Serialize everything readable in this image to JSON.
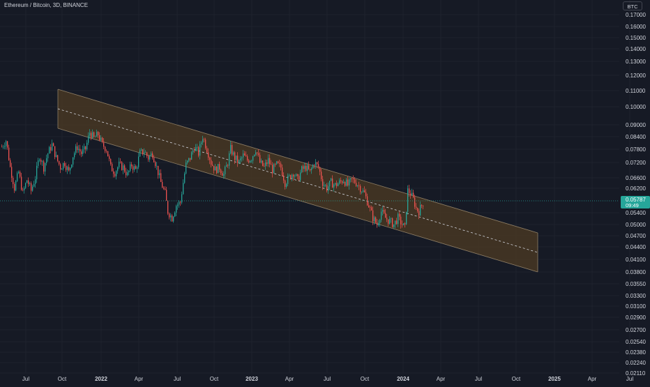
{
  "header": {
    "title": "Ethereum / Bitcoin, 3D, BINANCE",
    "currency": "BTC"
  },
  "chart_data": {
    "type": "candlestick",
    "yscale": "log",
    "ylim": [
      0.0211,
      0.17
    ],
    "y_tick_labels": [
      "0.17000",
      "0.16000",
      "0.15000",
      "0.14000",
      "0.13000",
      "0.12000",
      "0.11000",
      "0.10000",
      "0.09000",
      "0.08400",
      "0.07800",
      "0.07200",
      "0.06600",
      "0.06200",
      "0.05400",
      "0.05000",
      "0.04700",
      "0.04400",
      "0.04100",
      "0.03800",
      "0.03550",
      "0.03300",
      "0.03100",
      "0.02900",
      "0.02700",
      "0.02540",
      "0.02380",
      "0.02240",
      "0.02110"
    ],
    "x_tick_labels": [
      "Jul",
      "Oct",
      "2022",
      "Apr",
      "Jul",
      "Oct",
      "2023",
      "Apr",
      "Jul",
      "Oct",
      "2024",
      "Apr",
      "Jul",
      "Oct",
      "2025",
      "Apr",
      "Jul"
    ],
    "bold_x_ticks": [
      "2022",
      "2023",
      "2024",
      "2025"
    ],
    "last_price": {
      "value": "0.05787",
      "countdown": "09:49",
      "color": "#26a69a"
    },
    "series": [
      {
        "date": "2021-05",
        "close": 0.08
      },
      {
        "date": "2021-06",
        "close": 0.068
      },
      {
        "date": "2021-07",
        "close": 0.062
      },
      {
        "date": "2021-08",
        "close": 0.068
      },
      {
        "date": "2021-09",
        "close": 0.076
      },
      {
        "date": "2021-10",
        "close": 0.068
      },
      {
        "date": "2021-11",
        "close": 0.074
      },
      {
        "date": "2021-12",
        "close": 0.084
      },
      {
        "date": "2022-01",
        "close": 0.079
      },
      {
        "date": "2022-02",
        "close": 0.069
      },
      {
        "date": "2022-03",
        "close": 0.071
      },
      {
        "date": "2022-04",
        "close": 0.075
      },
      {
        "date": "2022-05",
        "close": 0.069
      },
      {
        "date": "2022-06",
        "close": 0.054
      },
      {
        "date": "2022-07",
        "close": 0.07
      },
      {
        "date": "2022-08",
        "close": 0.079
      },
      {
        "date": "2022-09",
        "close": 0.07
      },
      {
        "date": "2022-10",
        "close": 0.072
      },
      {
        "date": "2022-11",
        "close": 0.074
      },
      {
        "date": "2022-12",
        "close": 0.072
      },
      {
        "date": "2023-01",
        "close": 0.07
      },
      {
        "date": "2023-02",
        "close": 0.068
      },
      {
        "date": "2023-03",
        "close": 0.065
      },
      {
        "date": "2023-04",
        "close": 0.066
      },
      {
        "date": "2023-05",
        "close": 0.069
      },
      {
        "date": "2023-06",
        "close": 0.062
      },
      {
        "date": "2023-07",
        "close": 0.062
      },
      {
        "date": "2023-08",
        "close": 0.062
      },
      {
        "date": "2023-09",
        "close": 0.062
      },
      {
        "date": "2023-10",
        "close": 0.054
      },
      {
        "date": "2023-11",
        "close": 0.052
      },
      {
        "date": "2023-12",
        "close": 0.052
      },
      {
        "date": "2024-01",
        "close": 0.054
      },
      {
        "date": "2024-01-15",
        "close": 0.06
      },
      {
        "date": "2024-02",
        "close": 0.054
      },
      {
        "date": "2024-03",
        "close": 0.0579
      }
    ],
    "colors": {
      "up": "#26a69a",
      "down": "#ef5350",
      "channel_fill": "#473723",
      "channel_edge": "#8f7f66",
      "midline": "#d1d4dc",
      "axis_text": "#d1d4dc",
      "grid": "#1e222d",
      "background": "#161a25"
    }
  }
}
